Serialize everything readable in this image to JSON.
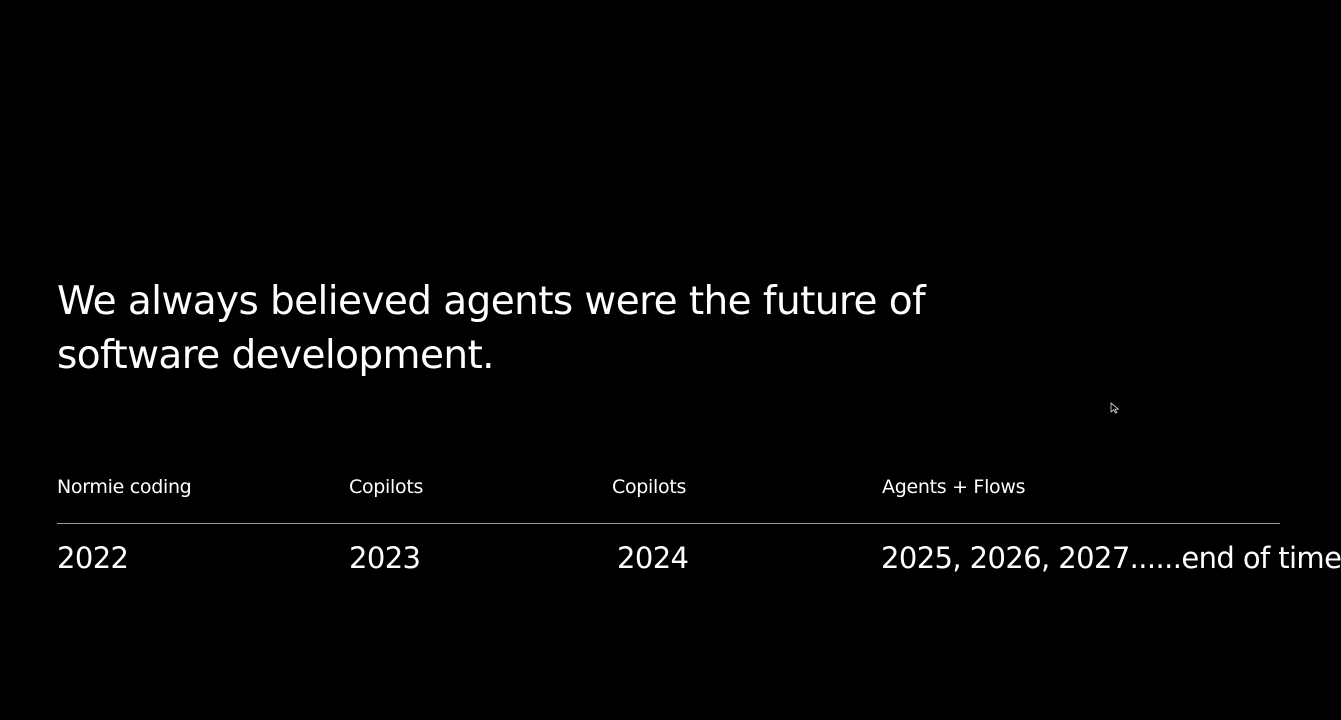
{
  "slide": {
    "headline": "We always believed agents were the future of software development.",
    "timeline": {
      "labels": [
        "Normie coding",
        "Copilots",
        "Copilots",
        "Agents + Flows"
      ],
      "years": [
        "2022",
        "2023",
        "2024",
        "2025, 2026, 2027......end of time"
      ]
    }
  },
  "colors": {
    "background": "#000000",
    "text": "#ffffff",
    "divider": "#9a9a9a"
  },
  "icons": {
    "cursor": "mouse-pointer-icon"
  }
}
